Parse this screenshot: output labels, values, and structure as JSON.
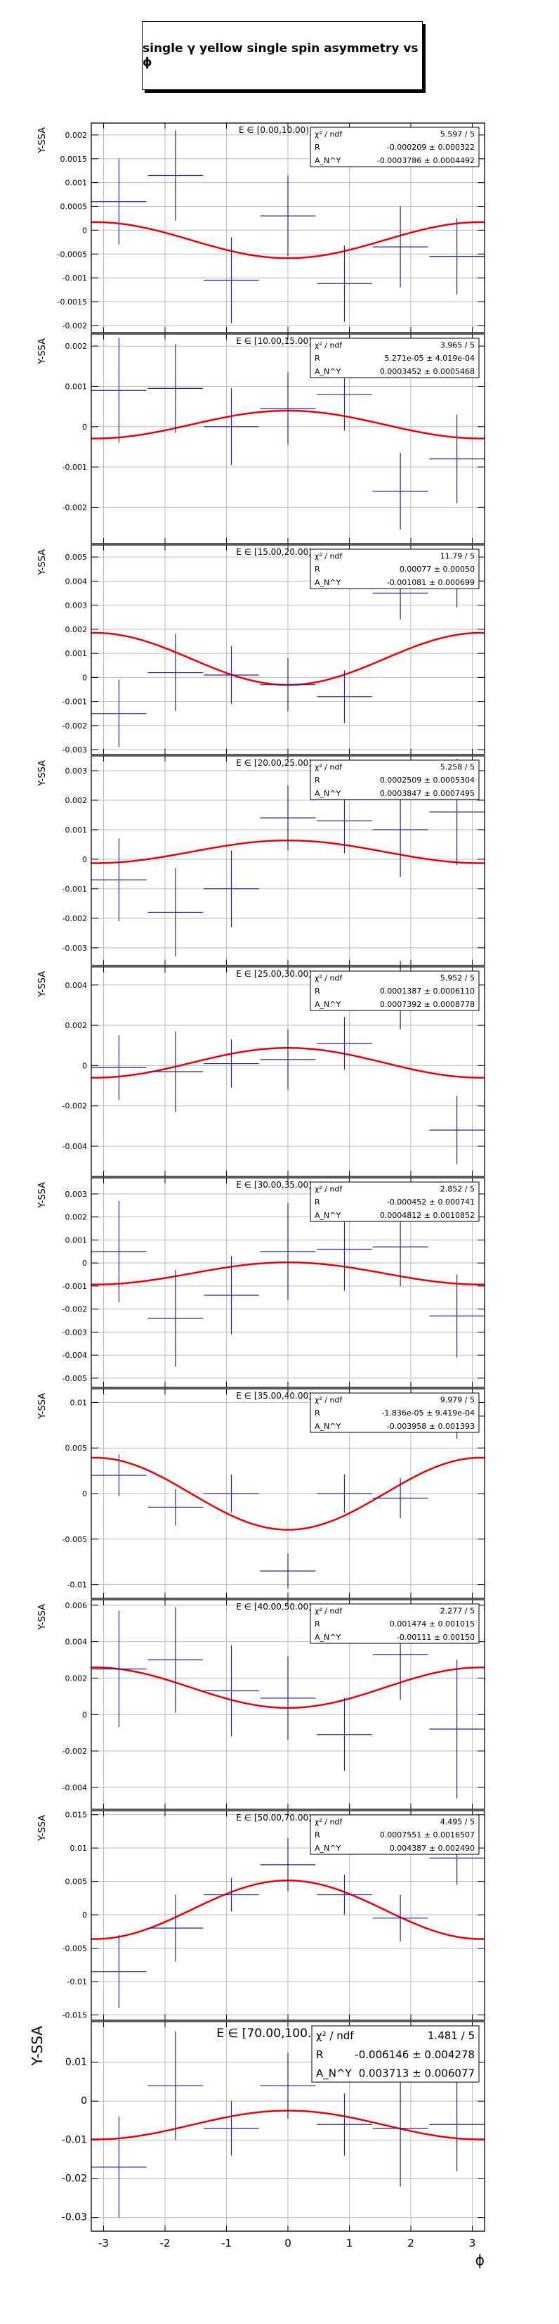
{
  "title": "single γ yellow single spin asymmetry vs ϕ",
  "colors": {
    "data": "#2222aa",
    "fit": "#ee0000",
    "grid": "#bbbbbb",
    "frame": "#000000"
  },
  "chart_data": [
    {
      "type": "scatter",
      "title": "E ∈ [0.00,10.00)",
      "ylabel": "Y-SSA",
      "xlabel": "",
      "xlim": [
        -3.2,
        3.2
      ],
      "grid": true,
      "ylim": [
        -0.00215,
        0.00225
      ],
      "yticks": [
        -0.002,
        -0.0015,
        -0.001,
        -0.0005,
        0,
        0.0005,
        0.001,
        0.0015,
        0.002
      ],
      "ytick_labels": [
        "-0.002",
        "-0.0015",
        "-0.001",
        "-0.0005",
        "0",
        "0.0005",
        "0.001",
        "0.0015",
        "0.002"
      ],
      "x": [
        -2.75,
        -1.83,
        -0.92,
        0.0,
        0.92,
        1.83,
        2.75
      ],
      "y": [
        0.0006,
        0.00115,
        -0.00105,
        0.0003,
        -0.00112,
        -0.00035,
        -0.00055
      ],
      "yerr": [
        0.0009,
        0.00095,
        0.0009,
        0.00085,
        0.0008,
        0.00085,
        0.0008
      ],
      "stats": [
        [
          "χ² / ndf",
          "5.597 / 5"
        ],
        [
          "R",
          "-0.000209 ± 0.000322"
        ],
        [
          "A_N^Y",
          "-0.0003786 ± 0.0004492"
        ]
      ],
      "fit": {
        "R": -0.000209,
        "A": -0.0003786
      }
    },
    {
      "type": "scatter",
      "title": "E ∈ [10.00,15.00)",
      "ylabel": "Y-SSA",
      "xlabel": "",
      "xlim": [
        -3.2,
        3.2
      ],
      "grid": true,
      "ylim": [
        -0.0029,
        0.0023
      ],
      "yticks": [
        -0.002,
        -0.001,
        0,
        0.001,
        0.002
      ],
      "ytick_labels": [
        "-0.002",
        "-0.001",
        "0",
        "0.001",
        "0.002"
      ],
      "x": [
        -2.75,
        -1.83,
        -0.92,
        0.0,
        0.92,
        1.83,
        2.75
      ],
      "y": [
        0.0009,
        0.00095,
        0.0,
        0.00045,
        0.0008,
        -0.0016,
        -0.0008
      ],
      "yerr": [
        0.0013,
        0.0011,
        0.00095,
        0.0009,
        0.0009,
        0.00095,
        0.0011
      ],
      "stats": [
        [
          "χ² / ndf",
          "3.965 / 5"
        ],
        [
          "R",
          "5.271e-05 ± 4.019e-04"
        ],
        [
          "A_N^Y",
          "0.0003452 ± 0.0005468"
        ]
      ],
      "fit": {
        "R": 5.271e-05,
        "A": 0.0003452
      }
    },
    {
      "type": "scatter",
      "title": "E ∈ [15.00,20.00)",
      "ylabel": "Y-SSA",
      "xlabel": "",
      "xlim": [
        -3.2,
        3.2
      ],
      "grid": true,
      "ylim": [
        -0.0032,
        0.0055
      ],
      "yticks": [
        -0.003,
        -0.002,
        -0.001,
        0,
        0.001,
        0.002,
        0.003,
        0.004,
        0.005
      ],
      "ytick_labels": [
        "-0.003",
        "-0.002",
        "-0.001",
        "0",
        "0.001",
        "0.002",
        "0.003",
        "0.004",
        "0.005"
      ],
      "x": [
        -2.75,
        -1.83,
        -0.92,
        0.0,
        0.92,
        1.83,
        2.75
      ],
      "y": [
        -0.0015,
        0.0002,
        0.0001,
        -0.0003,
        -0.0008,
        0.0035,
        0.004
      ],
      "yerr": [
        0.0014,
        0.0016,
        0.0012,
        0.0011,
        0.0011,
        0.0011,
        0.0011
      ],
      "stats": [
        [
          "χ² / ndf",
          "11.79 / 5"
        ],
        [
          "R",
          "0.00077 ± 0.00050"
        ],
        [
          "A_N^Y",
          "-0.001081 ± 0.000699"
        ]
      ],
      "fit": {
        "R": 0.00077,
        "A": -0.001081
      }
    },
    {
      "type": "scatter",
      "title": "E ∈ [20.00,25.00)",
      "ylabel": "Y-SSA",
      "xlabel": "",
      "xlim": [
        -3.2,
        3.2
      ],
      "grid": true,
      "ylim": [
        -0.0036,
        0.0035
      ],
      "yticks": [
        -0.003,
        -0.002,
        -0.001,
        0,
        0.001,
        0.002,
        0.003
      ],
      "ytick_labels": [
        "-0.003",
        "-0.002",
        "-0.001",
        "0",
        "0.001",
        "0.002",
        "0.003"
      ],
      "x": [
        -2.75,
        -1.83,
        -0.92,
        0.0,
        0.92,
        1.83,
        2.75
      ],
      "y": [
        -0.0007,
        -0.0018,
        -0.001,
        0.0014,
        0.0013,
        0.001,
        0.0016
      ],
      "yerr": [
        0.0014,
        0.0015,
        0.0013,
        0.0011,
        0.0011,
        0.0016,
        0.0018
      ],
      "stats": [
        [
          "χ² / ndf",
          "5.258 / 5"
        ],
        [
          "R",
          "0.0002509 ± 0.0005304"
        ],
        [
          "A_N^Y",
          "0.0003847 ± 0.0007495"
        ]
      ],
      "fit": {
        "R": 0.0002509,
        "A": 0.0003847
      }
    },
    {
      "type": "scatter",
      "title": "E ∈ [25.00,30.00)",
      "ylabel": "Y-SSA",
      "xlabel": "",
      "xlim": [
        -3.2,
        3.2
      ],
      "grid": true,
      "ylim": [
        -0.0055,
        0.0049
      ],
      "yticks": [
        -0.004,
        -0.002,
        0,
        0.002,
        0.004
      ],
      "ytick_labels": [
        "-0.004",
        "-0.002",
        "0",
        "0.002",
        "0.004"
      ],
      "x": [
        -2.75,
        -1.83,
        -0.92,
        0.0,
        0.92,
        1.83,
        2.75
      ],
      "y": [
        -0.0001,
        -0.0003,
        0.0001,
        0.0003,
        0.0011,
        0.0035,
        -0.0032
      ],
      "yerr": [
        0.0016,
        0.002,
        0.0012,
        0.0015,
        0.0013,
        0.0017,
        0.0017
      ],
      "stats": [
        [
          "χ² / ndf",
          "5.952 / 5"
        ],
        [
          "R",
          "0.0001387 ± 0.0006110"
        ],
        [
          "A_N^Y",
          "0.0007392 ± 0.0008778"
        ]
      ],
      "fit": {
        "R": 0.0001387,
        "A": 0.0007392
      }
    },
    {
      "type": "scatter",
      "title": "E ∈ [30.00,35.00)",
      "ylabel": "Y-SSA",
      "xlabel": "",
      "xlim": [
        -3.2,
        3.2
      ],
      "grid": true,
      "ylim": [
        -0.0054,
        0.0037
      ],
      "yticks": [
        -0.005,
        -0.004,
        -0.003,
        -0.002,
        -0.001,
        0,
        0.001,
        0.002,
        0.003
      ],
      "ytick_labels": [
        "-0.005",
        "-0.004",
        "-0.003",
        "-0.002",
        "-0.001",
        "0",
        "0.001",
        "0.002",
        "0.003"
      ],
      "x": [
        -2.75,
        -1.83,
        -0.92,
        0.0,
        0.92,
        1.83,
        2.75
      ],
      "y": [
        0.0005,
        -0.0024,
        -0.0014,
        0.0005,
        0.0006,
        0.0007,
        -0.0023
      ],
      "yerr": [
        0.0022,
        0.0021,
        0.0017,
        0.0021,
        0.0018,
        0.0017,
        0.0018
      ],
      "stats": [
        [
          "χ² / ndf",
          "2.852 / 5"
        ],
        [
          "R",
          "-0.000452 ± 0.000741"
        ],
        [
          "A_N^Y",
          "0.0004812 ± 0.0010852"
        ]
      ],
      "fit": {
        "R": -0.000452,
        "A": 0.0004812
      }
    },
    {
      "type": "scatter",
      "title": "E ∈ [35.00,40.00)",
      "ylabel": "Y-SSA",
      "xlabel": "",
      "xlim": [
        -3.2,
        3.2
      ],
      "grid": true,
      "ylim": [
        -0.0115,
        0.0115
      ],
      "yticks": [
        -0.01,
        -0.005,
        0,
        0.005,
        0.01
      ],
      "ytick_labels": [
        "-0.01",
        "-0.005",
        "0",
        "0.005",
        "0.01"
      ],
      "x": [
        -2.75,
        -1.83,
        -0.92,
        0.0,
        0.92,
        1.83,
        2.75
      ],
      "y": [
        0.002,
        -0.0015,
        0.0,
        -0.0085,
        0.0,
        -0.0005,
        0.0085
      ],
      "yerr": [
        0.0023,
        0.002,
        0.0021,
        0.0019,
        0.0021,
        0.0022,
        0.0025
      ],
      "stats": [
        [
          "χ² / ndf",
          "9.979 / 5"
        ],
        [
          "R",
          "-1.836e-05 ± 9.419e-04"
        ],
        [
          "A_N^Y",
          "-0.003958 ± 0.001393"
        ]
      ],
      "fit": {
        "R": -1.836e-05,
        "A": -0.003958
      }
    },
    {
      "type": "scatter",
      "title": "E ∈ [40.00,50.00)",
      "ylabel": "Y-SSA",
      "xlabel": "",
      "xlim": [
        -3.2,
        3.2
      ],
      "grid": true,
      "ylim": [
        -0.0052,
        0.0063
      ],
      "yticks": [
        -0.004,
        -0.002,
        0,
        0.002,
        0.004,
        0.006
      ],
      "ytick_labels": [
        "-0.004",
        "-0.002",
        "0",
        "0.002",
        "0.004",
        "0.006"
      ],
      "x": [
        -2.75,
        -1.83,
        -0.92,
        0.0,
        0.92,
        1.83,
        2.75
      ],
      "y": [
        0.0025,
        0.003,
        0.0013,
        0.0009,
        -0.0011,
        0.0033,
        -0.0008
      ],
      "yerr": [
        0.0032,
        0.0029,
        0.0025,
        0.0023,
        0.002,
        0.0025,
        0.0038
      ],
      "stats": [
        [
          "χ² / ndf",
          "2.277 / 5"
        ],
        [
          "R",
          "0.001474 ± 0.001015"
        ],
        [
          "A_N^Y",
          "-0.00111 ± 0.00150"
        ]
      ],
      "fit": {
        "R": 0.001474,
        "A": -0.00111
      }
    },
    {
      "type": "scatter",
      "title": "E ∈ [50.00,70.00)",
      "ylabel": "Y-SSA",
      "xlabel": "",
      "xlim": [
        -3.2,
        3.2
      ],
      "grid": true,
      "ylim": [
        -0.0158,
        0.0156
      ],
      "yticks": [
        -0.015,
        -0.01,
        -0.005,
        0,
        0.005,
        0.01,
        0.015
      ],
      "ytick_labels": [
        "-0.015",
        "-0.01",
        "-0.005",
        "0",
        "0.005",
        "0.01",
        "0.015"
      ],
      "x": [
        -2.75,
        -1.83,
        -0.92,
        0.0,
        0.92,
        1.83,
        2.75
      ],
      "y": [
        -0.0085,
        -0.002,
        0.003,
        0.0075,
        0.003,
        -0.0005,
        0.0085
      ],
      "yerr": [
        0.0055,
        0.005,
        0.0025,
        0.004,
        0.003,
        0.0035,
        0.004
      ],
      "stats": [
        [
          "χ² / ndf",
          "4.495 / 5"
        ],
        [
          "R",
          "0.0007551 ± 0.0016507"
        ],
        [
          "A_N^Y",
          "0.004387 ± 0.002490"
        ]
      ],
      "fit": {
        "R": 0.0007551,
        "A": 0.004387
      }
    },
    {
      "type": "scatter",
      "title": "E ∈ [70.00,100.00)",
      "ylabel": "Y-SSA",
      "xlabel": "ϕ",
      "xlim": [
        -3.2,
        3.2
      ],
      "grid": true,
      "ylim": [
        -0.0335,
        0.0205
      ],
      "yticks": [
        -0.03,
        -0.02,
        -0.01,
        0,
        0.01
      ],
      "ytick_labels": [
        "-0.03",
        "-0.02",
        "-0.01",
        "0",
        "0.01"
      ],
      "xticks": [
        -3,
        -2,
        -1,
        0,
        1,
        2,
        3
      ],
      "xtick_labels": [
        "-3",
        "-2",
        "-1",
        "0",
        "1",
        "2",
        "3"
      ],
      "x": [
        -2.75,
        -1.83,
        -0.92,
        0.0,
        0.92,
        1.83,
        2.75
      ],
      "y": [
        -0.017,
        0.004,
        -0.007,
        0.004,
        -0.006,
        -0.007,
        -0.006
      ],
      "yerr": [
        0.013,
        0.014,
        0.007,
        0.0085,
        0.008,
        0.015,
        0.012
      ],
      "stats": [
        [
          "χ² / ndf",
          "1.481 / 5"
        ],
        [
          "R",
          "-0.006146 ± 0.004278"
        ],
        [
          "A_N^Y",
          "0.003713 ± 0.006077"
        ]
      ],
      "fit": {
        "R": -0.006146,
        "A": 0.003713
      }
    }
  ]
}
